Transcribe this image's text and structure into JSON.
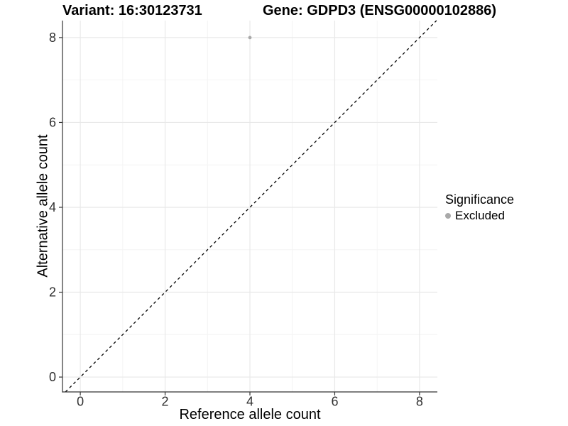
{
  "titles": {
    "variant": "Variant: 16:30123731",
    "gene": "Gene: GDPD3 (ENSG00000102886)"
  },
  "axes": {
    "x_label": "Reference allele count",
    "y_label": "Alternative allele count"
  },
  "legend": {
    "title": "Significance",
    "items": [
      {
        "label": "Excluded",
        "color": "#a9a9a9"
      }
    ]
  },
  "chart_data": {
    "type": "scatter",
    "title_left": "Variant: 16:30123731",
    "title_right": "Gene: GDPD3 (ENSG00000102886)",
    "xlabel": "Reference allele count",
    "ylabel": "Alternative allele count",
    "xlim": [
      -0.42,
      8.42
    ],
    "ylim": [
      -0.35,
      8.4
    ],
    "x_ticks": [
      0,
      2,
      4,
      6,
      8
    ],
    "y_ticks": [
      0,
      2,
      4,
      6,
      8
    ],
    "x_minor_ticks": [
      1,
      3,
      5,
      7
    ],
    "y_minor_ticks": [
      1,
      3,
      5,
      7
    ],
    "grid": "major and minor gridlines on white panel",
    "legend_position": "right-center",
    "series": [
      {
        "name": "Excluded",
        "color": "#a9a9a9",
        "point_radius": 2.4,
        "points": [
          {
            "x": 4,
            "y": 8
          }
        ]
      }
    ],
    "identity_line": {
      "kind": "y = x diagonal",
      "style": "dashed",
      "color": "#000000"
    },
    "colors": {
      "grid_major": "#e8e8e8",
      "grid_minor": "#f4f4f4",
      "axis_line": "#333333",
      "tick_text": "#303030"
    }
  }
}
